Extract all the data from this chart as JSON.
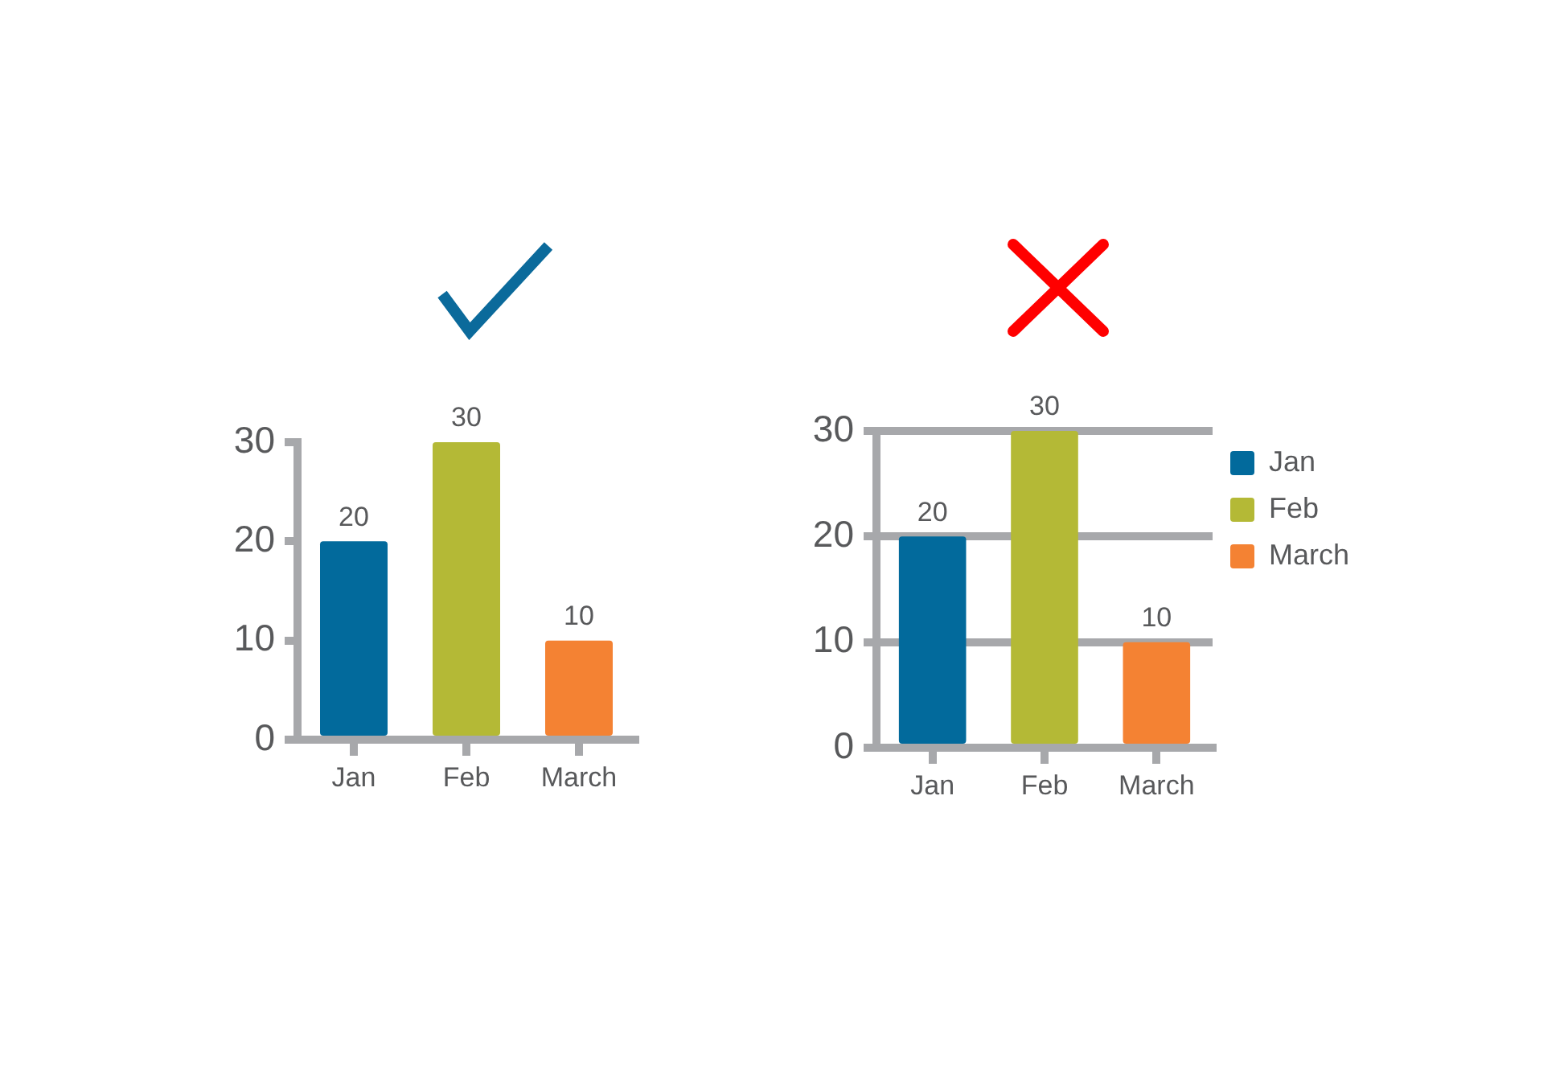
{
  "chart_data": [
    {
      "type": "bar",
      "categories": [
        "Jan",
        "Feb",
        "March"
      ],
      "values": [
        20,
        30,
        10
      ],
      "colors": [
        "#026a9c",
        "#b4b936",
        "#f48233"
      ],
      "ylim": [
        0,
        30
      ],
      "yticks": [
        0,
        10,
        20,
        30
      ],
      "grid": false,
      "legend": false,
      "data_labels": true
    },
    {
      "type": "bar",
      "categories": [
        "Jan",
        "Feb",
        "March"
      ],
      "series": [
        {
          "name": "Jan",
          "color": "#026a9c",
          "values": [
            20,
            null,
            null
          ]
        },
        {
          "name": "Feb",
          "color": "#b4b936",
          "values": [
            null,
            30,
            null
          ]
        },
        {
          "name": "March",
          "color": "#f48233",
          "values": [
            null,
            null,
            10
          ]
        }
      ],
      "ylim": [
        0,
        30
      ],
      "yticks": [
        0,
        10,
        20,
        30
      ],
      "grid": "y",
      "legend": "top right",
      "data_labels": true
    }
  ]
}
